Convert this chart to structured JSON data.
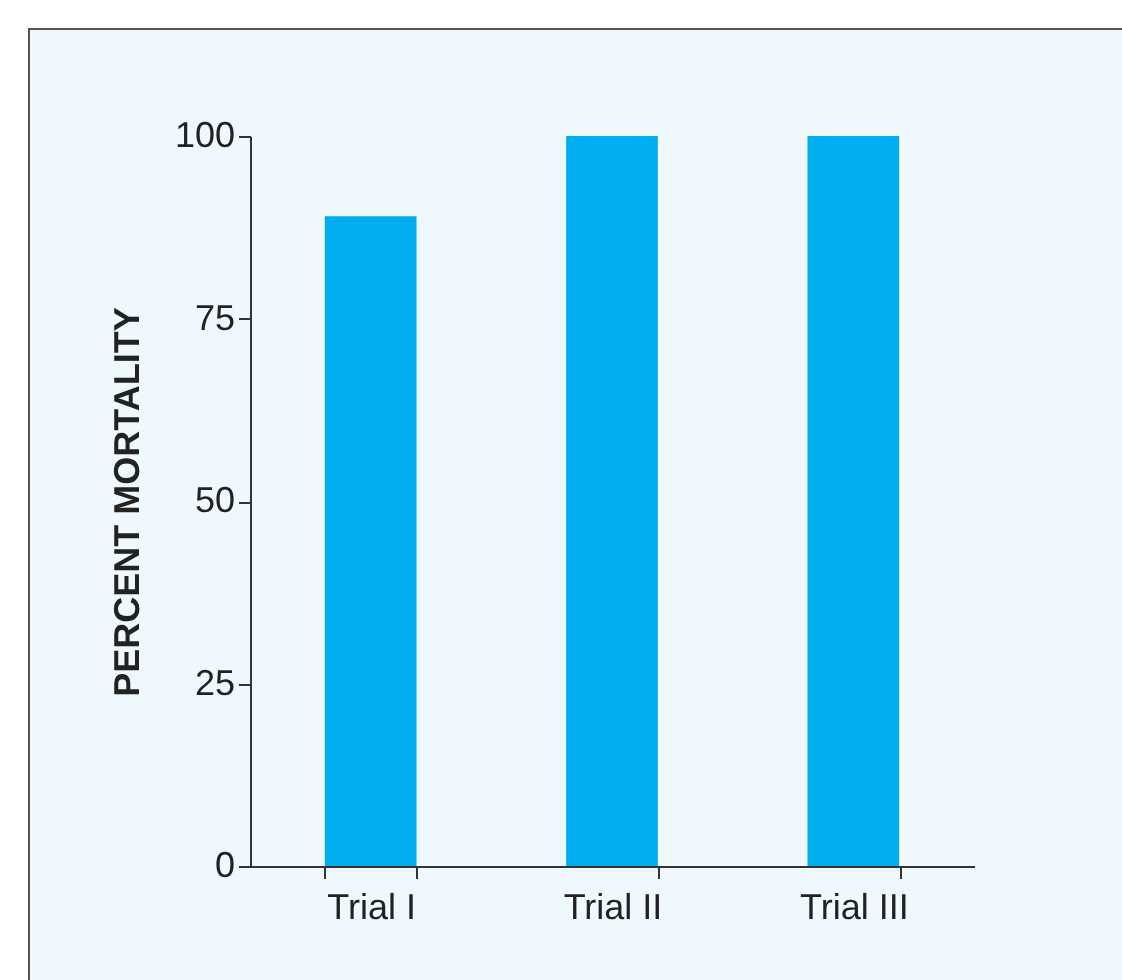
{
  "chart_data": {
    "type": "bar",
    "ylabel": "PERCENT MORTALITY",
    "categories": [
      "Trial I",
      "Trial II",
      "Trial III"
    ],
    "values": [
      89,
      100,
      100
    ],
    "color": "#00aeef",
    "ylim": [
      0,
      100
    ],
    "yticks": [
      0,
      25,
      50,
      75,
      100
    ],
    "grid": false
  }
}
